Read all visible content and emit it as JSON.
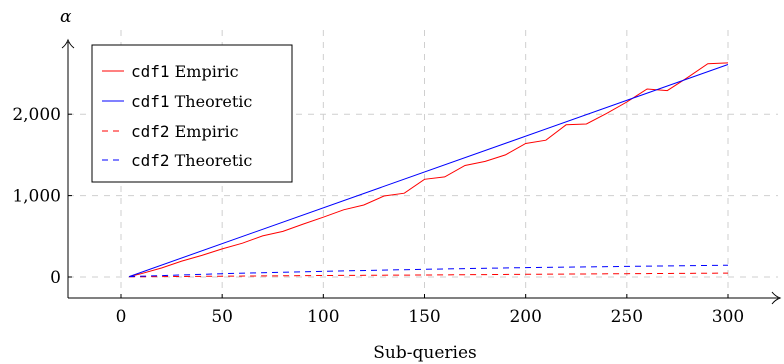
{
  "chart_data": {
    "type": "line",
    "title": "",
    "xlabel": "Sub-queries",
    "ylabel": "α",
    "xlim": [
      -30,
      330
    ],
    "ylim": [
      -250,
      2870
    ],
    "x_ticks": [
      0,
      50,
      100,
      150,
      200,
      250,
      300
    ],
    "x_tick_labels": [
      "0",
      "50",
      "100",
      "150",
      "200",
      "250",
      "300"
    ],
    "y_ticks": [
      0,
      1000,
      2000
    ],
    "y_tick_labels": [
      "0",
      "1,000",
      "2,000"
    ],
    "grid": true,
    "legend_position": "top-left",
    "legend": [
      {
        "code": "cdf1",
        "text": " Empiric",
        "color": "#ff0000",
        "dash": "solid"
      },
      {
        "code": "cdf1",
        "text": " Theoretic",
        "color": "#0000ff",
        "dash": "solid"
      },
      {
        "code": "cdf2",
        "text": " Empiric",
        "color": "#ff0000",
        "dash": "dashed"
      },
      {
        "code": "cdf2",
        "text": " Theoretic",
        "color": "#0000ff",
        "dash": "dashed"
      }
    ],
    "series": [
      {
        "name": "cdf1 Empiric",
        "color": "#ff0000",
        "dash": "solid",
        "x": [
          4,
          10,
          20,
          30,
          40,
          50,
          60,
          70,
          80,
          90,
          100,
          110,
          120,
          130,
          140,
          150,
          160,
          170,
          180,
          190,
          200,
          210,
          220,
          230,
          240,
          250,
          260,
          270,
          280,
          290,
          300
        ],
        "y": [
          5,
          40,
          110,
          195,
          265,
          345,
          415,
          505,
          560,
          650,
          735,
          825,
          885,
          995,
          1030,
          1200,
          1230,
          1370,
          1420,
          1500,
          1640,
          1680,
          1870,
          1880,
          2010,
          2150,
          2310,
          2290,
          2450,
          2620,
          2630
        ]
      },
      {
        "name": "cdf1 Theoretic",
        "color": "#0000ff",
        "dash": "solid",
        "x": [
          4,
          300
        ],
        "y": [
          5,
          2610
        ]
      },
      {
        "name": "cdf2 Empiric",
        "color": "#ff0000",
        "dash": "dashed",
        "x": [
          4,
          50,
          100,
          150,
          200,
          250,
          300
        ],
        "y": [
          3,
          10,
          18,
          25,
          33,
          40,
          48
        ]
      },
      {
        "name": "cdf2 Theoretic",
        "color": "#0000ff",
        "dash": "dashed",
        "x": [
          4,
          50,
          100,
          150,
          200,
          250,
          300
        ],
        "y": [
          5,
          40,
          70,
          95,
          115,
          130,
          145
        ]
      }
    ]
  }
}
